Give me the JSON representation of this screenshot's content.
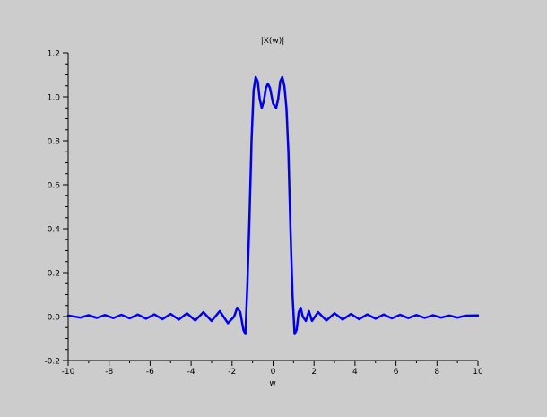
{
  "chart_data": {
    "type": "line",
    "title": "|X(w)|",
    "xlabel": "w",
    "ylabel": "",
    "xlim": [
      -10,
      10
    ],
    "ylim": [
      -0.2,
      1.2
    ],
    "xticks": [
      "-10",
      "-8",
      "-6",
      "-4",
      "-2",
      "0",
      "2",
      "4",
      "6",
      "8",
      "10"
    ],
    "yticks": [
      "-0.2",
      "0.0",
      "0.2",
      "0.4",
      "0.6",
      "0.8",
      "1.0",
      "1.2"
    ],
    "grid": false,
    "series": [
      {
        "color": "#0000ee",
        "x": [
          -10,
          -9.4,
          -9.0,
          -8.6,
          -8.2,
          -7.8,
          -7.4,
          -7.0,
          -6.6,
          -6.2,
          -5.8,
          -5.4,
          -5.0,
          -4.6,
          -4.2,
          -3.8,
          -3.4,
          -3.0,
          -2.6,
          -2.2,
          -1.9,
          -1.75,
          -1.6,
          -1.45,
          -1.35,
          -1.25,
          -1.15,
          -1.05,
          -0.95,
          -0.85,
          -0.75,
          -0.65,
          -0.55,
          -0.45,
          -0.35,
          -0.25,
          -0.15,
          0.0,
          0.15,
          0.25,
          0.35,
          0.45,
          0.55,
          0.65,
          0.75,
          0.85,
          0.95,
          1.05,
          1.15,
          1.25,
          1.35,
          1.45,
          1.6,
          1.75,
          1.9,
          2.2,
          2.6,
          3.0,
          3.4,
          3.8,
          4.2,
          4.6,
          5.0,
          5.4,
          5.8,
          6.2,
          6.6,
          7.0,
          7.4,
          7.8,
          8.2,
          8.6,
          9.0,
          9.4,
          10
        ],
        "values": [
          0.005,
          -0.005,
          0.006,
          -0.006,
          0.007,
          -0.007,
          0.008,
          -0.008,
          0.009,
          -0.01,
          0.01,
          -0.012,
          0.012,
          -0.014,
          0.015,
          -0.018,
          0.02,
          -0.02,
          0.025,
          -0.03,
          0.0,
          0.04,
          0.02,
          -0.06,
          -0.08,
          0.15,
          0.45,
          0.8,
          1.03,
          1.09,
          1.07,
          0.99,
          0.95,
          0.98,
          1.04,
          1.06,
          1.04,
          0.97,
          0.95,
          0.99,
          1.07,
          1.09,
          1.05,
          0.95,
          0.75,
          0.4,
          0.1,
          -0.08,
          -0.06,
          0.02,
          0.04,
          0.0,
          -0.02,
          0.025,
          -0.02,
          0.02,
          -0.018,
          0.015,
          -0.014,
          0.012,
          -0.012,
          0.01,
          -0.01,
          0.009,
          -0.008,
          0.008,
          -0.007,
          0.007,
          -0.006,
          0.006,
          -0.005,
          0.005,
          -0.005,
          0.004,
          0.005
        ]
      }
    ]
  }
}
